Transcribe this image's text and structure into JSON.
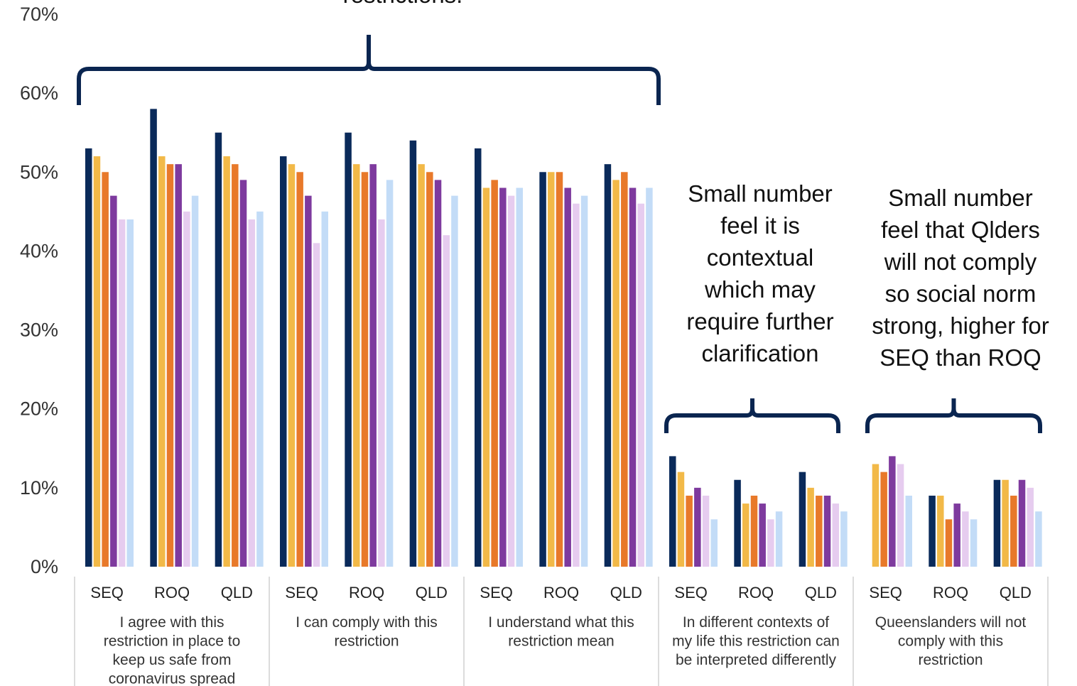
{
  "chart_data": {
    "type": "bar",
    "ylim": [
      0,
      70
    ],
    "yticks": [
      "0%",
      "10%",
      "20%",
      "30%",
      "40%",
      "50%",
      "60%",
      "70%"
    ],
    "groups": [
      {
        "label": "I agree with this restriction in place to keep us safe from coronavirus spread",
        "label_lines": [
          "I agree with this",
          "restriction in place to",
          "keep us safe from",
          "coronavirus spread"
        ]
      },
      {
        "label": "I can comply with this restriction",
        "label_lines": [
          "I can comply with this",
          "restriction"
        ]
      },
      {
        "label": "I understand what this restriction mean",
        "label_lines": [
          "I understand what this",
          "restriction mean"
        ]
      },
      {
        "label": "In different contexts of my life this restriction can be interpreted differently",
        "label_lines": [
          "In different contexts of",
          "my life this restriction can",
          "be interpreted differently"
        ]
      },
      {
        "label": "Queenslanders will not comply with this restriction",
        "label_lines": [
          "Queenslanders will not",
          "comply with this",
          "restriction"
        ]
      }
    ],
    "categories": [
      "SEQ",
      "ROQ",
      "QLD",
      "SEQ",
      "ROQ",
      "QLD",
      "SEQ",
      "ROQ",
      "QLD",
      "SEQ",
      "ROQ",
      "QLD",
      "SEQ",
      "ROQ",
      "QLD"
    ],
    "series_colors": [
      "#0a2a5a",
      "#f2b948",
      "#e8792a",
      "#7e3a9e",
      "#e6ccef",
      "#c3dcf7"
    ],
    "series": [
      {
        "values": [
          53,
          58,
          55,
          52,
          55,
          54,
          53,
          50,
          51,
          14,
          11,
          12,
          0,
          9,
          11
        ]
      },
      {
        "values": [
          52,
          52,
          52,
          51,
          51,
          51,
          48,
          50,
          49,
          12,
          8,
          10,
          13,
          9,
          11
        ]
      },
      {
        "values": [
          50,
          51,
          51,
          50,
          50,
          50,
          49,
          50,
          50,
          9,
          9,
          9,
          12,
          6,
          9
        ]
      },
      {
        "values": [
          47,
          51,
          49,
          47,
          51,
          49,
          48,
          48,
          48,
          10,
          8,
          9,
          14,
          8,
          11
        ]
      },
      {
        "values": [
          44,
          45,
          44,
          41,
          44,
          42,
          47,
          46,
          46,
          9,
          6,
          8,
          13,
          7,
          10
        ]
      },
      {
        "values": [
          44,
          47,
          45,
          45,
          49,
          47,
          48,
          47,
          48,
          6,
          7,
          7,
          9,
          6,
          7
        ]
      }
    ],
    "annotations": [
      {
        "text_lines": [
          "restrictions."
        ],
        "brace_from_group": 0,
        "brace_to_group": 2
      },
      {
        "text_lines": [
          "Small number",
          "feel it is",
          "contextual",
          "which may",
          "require further",
          "clarification"
        ],
        "brace_from_group": 3,
        "brace_to_group": 3
      },
      {
        "text_lines": [
          "Small number",
          "feel that Qlders",
          "will not comply",
          "so social norm",
          "strong, higher for",
          "SEQ than ROQ"
        ],
        "brace_from_group": 4,
        "brace_to_group": 4
      }
    ],
    "grid": false,
    "legend": "none"
  }
}
